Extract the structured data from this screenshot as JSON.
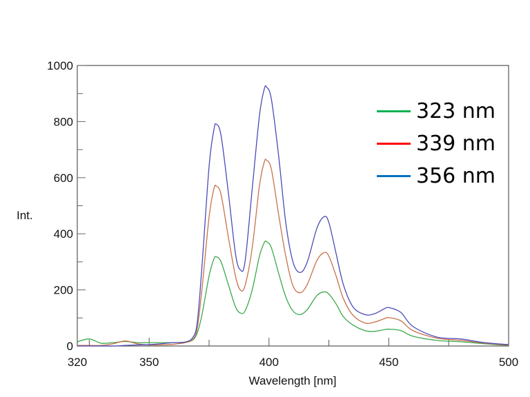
{
  "chart_data": {
    "type": "line",
    "title": "",
    "xlabel": "Wavelength [nm]",
    "ylabel": "Int.",
    "xlim": [
      320,
      500
    ],
    "ylim": [
      0,
      1000
    ],
    "x_ticks": [
      320,
      350,
      400,
      450,
      500
    ],
    "y_ticks": [
      0,
      200,
      400,
      600,
      800,
      1000
    ],
    "grid": false,
    "legend_position": "upper right",
    "x": [
      320,
      325,
      330,
      335,
      340,
      345,
      350,
      355,
      360,
      362,
      365,
      368,
      370,
      372,
      375,
      377,
      378,
      380,
      383,
      386,
      388,
      390,
      393,
      396,
      398,
      399,
      401,
      404,
      407,
      410,
      413,
      416,
      420,
      423,
      425,
      428,
      431,
      435,
      440,
      444,
      448,
      450,
      455,
      460,
      470,
      480,
      490,
      500
    ],
    "series": [
      {
        "name": "323 nm",
        "color": "#00B050",
        "line_color": "#3aa84a",
        "values": [
          15,
          25,
          10,
          12,
          16,
          12,
          12,
          12,
          12,
          12,
          14,
          20,
          45,
          110,
          250,
          310,
          318,
          300,
          220,
          140,
          118,
          125,
          200,
          320,
          368,
          372,
          350,
          260,
          175,
          125,
          112,
          130,
          180,
          193,
          185,
          150,
          105,
          75,
          55,
          52,
          58,
          60,
          55,
          35,
          20,
          15,
          8,
          2
        ]
      },
      {
        "name": "339 nm",
        "color": "#FF0000",
        "line_color": "#c8704a",
        "values": [
          2,
          2,
          2,
          8,
          18,
          8,
          4,
          4,
          6,
          8,
          12,
          22,
          60,
          200,
          460,
          560,
          570,
          540,
          390,
          250,
          200,
          215,
          350,
          570,
          655,
          662,
          630,
          470,
          320,
          215,
          190,
          220,
          305,
          333,
          320,
          250,
          170,
          110,
          82,
          85,
          97,
          101,
          90,
          55,
          28,
          20,
          10,
          3
        ]
      },
      {
        "name": "356 nm",
        "color": "#0070C0",
        "line_color": "#4a4ab8",
        "values": [
          0,
          0,
          0,
          0,
          2,
          4,
          5,
          8,
          12,
          12,
          14,
          28,
          80,
          280,
          640,
          770,
          791,
          750,
          550,
          330,
          272,
          300,
          560,
          820,
          915,
          923,
          880,
          680,
          440,
          300,
          262,
          300,
          420,
          461,
          440,
          330,
          220,
          140,
          112,
          115,
          132,
          137,
          120,
          70,
          32,
          25,
          12,
          5
        ]
      }
    ]
  },
  "y_axis_label": "Int.",
  "x_axis_label": "Wavelength [nm]",
  "legend": [
    {
      "label": "323 nm",
      "color": "#00B050"
    },
    {
      "label": "339 nm",
      "color": "#FF0000"
    },
    {
      "label": "356 nm",
      "color": "#0070C0"
    }
  ]
}
